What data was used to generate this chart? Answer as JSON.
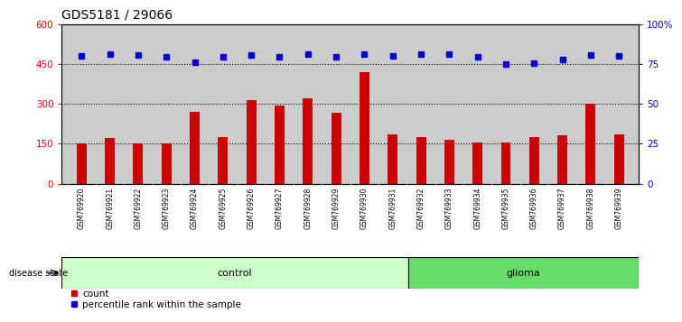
{
  "title": "GDS5181 / 29066",
  "samples": [
    "GSM769920",
    "GSM769921",
    "GSM769922",
    "GSM769923",
    "GSM769924",
    "GSM769925",
    "GSM769926",
    "GSM769927",
    "GSM769928",
    "GSM769929",
    "GSM769930",
    "GSM769931",
    "GSM769932",
    "GSM769933",
    "GSM769934",
    "GSM769935",
    "GSM769936",
    "GSM769937",
    "GSM769938",
    "GSM769939"
  ],
  "counts": [
    150,
    170,
    150,
    150,
    270,
    175,
    315,
    295,
    320,
    265,
    420,
    185,
    175,
    165,
    155,
    155,
    175,
    180,
    300,
    185
  ],
  "percentile_ranks": [
    480,
    485,
    482,
    478,
    455,
    475,
    483,
    478,
    487,
    475,
    485,
    480,
    487,
    486,
    478,
    448,
    452,
    465,
    482,
    480
  ],
  "group_labels": [
    "control",
    "glioma"
  ],
  "control_count": 12,
  "glioma_count": 8,
  "control_color": "#ccffcc",
  "glioma_color": "#66dd66",
  "bar_color": "#cc0000",
  "dot_color": "#0000cc",
  "left_ylim": [
    0,
    600
  ],
  "left_yticks": [
    0,
    150,
    300,
    450,
    600
  ],
  "left_yticklabels": [
    "0",
    "150",
    "300",
    "450",
    "600"
  ],
  "right_yticks": [
    0,
    150,
    300,
    450,
    600
  ],
  "right_yticklabels": [
    "0",
    "25",
    "50",
    "75",
    "100%"
  ],
  "grid_values": [
    150,
    300,
    450
  ],
  "legend_count_label": "count",
  "legend_pct_label": "percentile rank within the sample",
  "disease_state_label": "disease state",
  "plot_bg_color": "#cccccc",
  "xtick_bg_color": "#cccccc"
}
